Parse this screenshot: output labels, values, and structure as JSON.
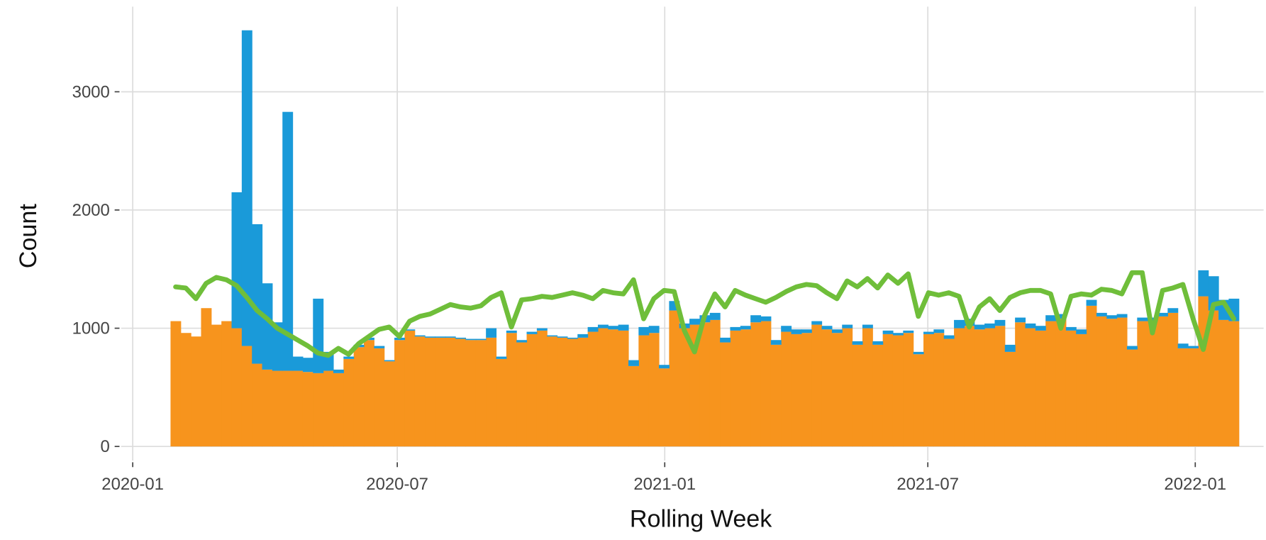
{
  "chart_data": {
    "type": "bar",
    "stacked": true,
    "grid": true,
    "xlabel": "Rolling Week",
    "ylabel": "Count",
    "x": [
      "2020-01-27",
      "2020-02-03",
      "2020-02-10",
      "2020-02-17",
      "2020-02-24",
      "2020-03-02",
      "2020-03-09",
      "2020-03-16",
      "2020-03-23",
      "2020-03-30",
      "2020-04-06",
      "2020-04-13",
      "2020-04-20",
      "2020-04-27",
      "2020-05-04",
      "2020-05-11",
      "2020-05-18",
      "2020-05-25",
      "2020-06-01",
      "2020-06-08",
      "2020-06-15",
      "2020-06-22",
      "2020-06-29",
      "2020-07-06",
      "2020-07-13",
      "2020-07-20",
      "2020-07-27",
      "2020-08-03",
      "2020-08-10",
      "2020-08-17",
      "2020-08-24",
      "2020-08-31",
      "2020-09-07",
      "2020-09-14",
      "2020-09-21",
      "2020-09-28",
      "2020-10-05",
      "2020-10-12",
      "2020-10-19",
      "2020-10-26",
      "2020-11-02",
      "2020-11-09",
      "2020-11-16",
      "2020-11-23",
      "2020-11-30",
      "2020-12-07",
      "2020-12-14",
      "2020-12-21",
      "2020-12-28",
      "2021-01-04",
      "2021-01-11",
      "2021-01-18",
      "2021-01-25",
      "2021-02-01",
      "2021-02-08",
      "2021-02-15",
      "2021-02-22",
      "2021-03-01",
      "2021-03-08",
      "2021-03-15",
      "2021-03-22",
      "2021-03-29",
      "2021-04-05",
      "2021-04-12",
      "2021-04-19",
      "2021-04-26",
      "2021-05-03",
      "2021-05-10",
      "2021-05-17",
      "2021-05-24",
      "2021-05-31",
      "2021-06-07",
      "2021-06-14",
      "2021-06-21",
      "2021-06-28",
      "2021-07-05",
      "2021-07-12",
      "2021-07-19",
      "2021-07-26",
      "2021-08-02",
      "2021-08-09",
      "2021-08-16",
      "2021-08-23",
      "2021-08-30",
      "2021-09-06",
      "2021-09-13",
      "2021-09-20",
      "2021-09-27",
      "2021-10-04",
      "2021-10-11",
      "2021-10-18",
      "2021-10-25",
      "2021-11-01",
      "2021-11-08",
      "2021-11-15",
      "2021-11-22",
      "2021-11-29",
      "2021-12-06",
      "2021-12-13",
      "2021-12-20",
      "2021-12-27",
      "2022-01-03",
      "2022-01-10",
      "2022-01-17",
      "2022-01-24"
    ],
    "series": [
      {
        "type": "bar",
        "color": "#f7941d",
        "values": [
          1060,
          960,
          930,
          1170,
          1030,
          1060,
          1000,
          850,
          700,
          650,
          640,
          640,
          640,
          630,
          620,
          640,
          620,
          740,
          840,
          900,
          830,
          720,
          900,
          980,
          930,
          920,
          920,
          920,
          910,
          900,
          900,
          920,
          740,
          960,
          880,
          950,
          980,
          930,
          920,
          910,
          920,
          970,
          1000,
          990,
          980,
          680,
          940,
          960,
          660,
          1150,
          1000,
          1030,
          1050,
          1070,
          880,
          980,
          990,
          1050,
          1060,
          860,
          970,
          950,
          960,
          1030,
          990,
          960,
          1000,
          860,
          1000,
          860,
          950,
          940,
          960,
          780,
          950,
          960,
          910,
          1000,
          1020,
          990,
          1000,
          1020,
          800,
          1050,
          1000,
          980,
          1060,
          1080,
          980,
          950,
          1190,
          1100,
          1080,
          1090,
          820,
          1060,
          1060,
          1100,
          1130,
          830,
          830,
          1270,
          1150,
          1070,
          1060
        ]
      },
      {
        "type": "bar",
        "color": "#1a9ad9",
        "values": [
          0,
          0,
          0,
          0,
          0,
          0,
          1150,
          2670,
          1180,
          730,
          410,
          2190,
          120,
          120,
          630,
          160,
          30,
          20,
          20,
          20,
          20,
          10,
          20,
          10,
          10,
          10,
          10,
          10,
          10,
          10,
          10,
          80,
          20,
          20,
          20,
          20,
          20,
          10,
          10,
          10,
          30,
          40,
          30,
          30,
          50,
          50,
          70,
          60,
          30,
          80,
          40,
          50,
          60,
          60,
          40,
          30,
          30,
          60,
          40,
          40,
          50,
          40,
          30,
          30,
          30,
          30,
          30,
          30,
          30,
          30,
          30,
          20,
          20,
          20,
          20,
          30,
          30,
          70,
          60,
          40,
          40,
          50,
          60,
          40,
          40,
          40,
          50,
          40,
          30,
          40,
          50,
          30,
          30,
          30,
          30,
          30,
          30,
          30,
          40,
          40,
          20,
          220,
          290,
          170,
          190
        ]
      },
      {
        "type": "line",
        "color": "#6fbe3a",
        "values": [
          1350,
          1340,
          1250,
          1380,
          1430,
          1410,
          1360,
          1260,
          1150,
          1080,
          1000,
          950,
          900,
          850,
          790,
          770,
          830,
          780,
          870,
          930,
          990,
          1010,
          930,
          1060,
          1100,
          1120,
          1160,
          1200,
          1180,
          1170,
          1190,
          1260,
          1300,
          1010,
          1240,
          1250,
          1270,
          1260,
          1280,
          1300,
          1280,
          1250,
          1320,
          1300,
          1290,
          1410,
          1080,
          1250,
          1320,
          1310,
          980,
          800,
          1110,
          1290,
          1180,
          1320,
          1280,
          1250,
          1220,
          1260,
          1310,
          1350,
          1370,
          1360,
          1300,
          1250,
          1400,
          1350,
          1420,
          1340,
          1450,
          1380,
          1460,
          1100,
          1300,
          1280,
          1300,
          1270,
          1010,
          1180,
          1250,
          1150,
          1260,
          1300,
          1320,
          1320,
          1290,
          1000,
          1270,
          1290,
          1280,
          1330,
          1320,
          1290,
          1470,
          1470,
          960,
          1320,
          1340,
          1370,
          1080,
          820,
          1200,
          1220,
          1080
        ]
      }
    ],
    "xlim": [
      "2019-12-24",
      "2022-02-17"
    ],
    "xticks": [
      "2020-01",
      "2020-07",
      "2021-01",
      "2021-07",
      "2022-01"
    ],
    "ylim": [
      -120,
      3720
    ],
    "yticks": [
      0,
      1000,
      2000,
      3000
    ]
  }
}
